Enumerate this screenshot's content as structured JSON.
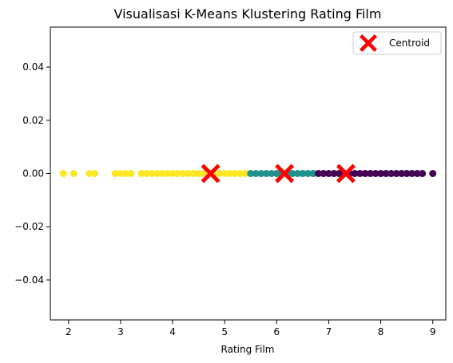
{
  "chart_data": {
    "type": "scatter",
    "title": "Visualisasi K-Means Klustering Rating Film",
    "xlabel": "Rating Film",
    "ylabel": "",
    "xlim": [
      1.65,
      9.25
    ],
    "ylim": [
      -0.055,
      0.055
    ],
    "x_ticks": [
      2,
      3,
      4,
      5,
      6,
      7,
      8,
      9
    ],
    "x_tick_labels": [
      "2",
      "3",
      "4",
      "5",
      "6",
      "7",
      "8",
      "9"
    ],
    "y_ticks": [
      -0.04,
      -0.02,
      0.0,
      0.02,
      0.04
    ],
    "y_tick_labels": [
      "−0.04",
      "−0.02",
      "0.00",
      "0.02",
      "0.04"
    ],
    "grid": false,
    "legend_position": "top-right",
    "series": [
      {
        "color": "#fde725",
        "x": [
          1.9,
          2.1,
          2.4,
          2.5,
          2.9,
          3.0,
          3.1,
          3.2,
          3.4,
          3.5,
          3.6,
          3.7,
          3.8,
          3.9,
          4.0,
          4.1,
          4.2,
          4.3,
          4.4,
          4.5,
          4.6,
          4.7,
          4.8,
          4.9,
          5.0,
          5.1,
          5.2,
          5.3,
          5.4
        ],
        "y": [
          0,
          0,
          0,
          0,
          0,
          0,
          0,
          0,
          0,
          0,
          0,
          0,
          0,
          0,
          0,
          0,
          0,
          0,
          0,
          0,
          0,
          0,
          0,
          0,
          0,
          0,
          0,
          0,
          0
        ]
      },
      {
        "color": "#21918c",
        "x": [
          5.5,
          5.6,
          5.7,
          5.8,
          5.9,
          6.0,
          6.1,
          6.2,
          6.3,
          6.4,
          6.5,
          6.6,
          6.7
        ],
        "y": [
          0,
          0,
          0,
          0,
          0,
          0,
          0,
          0,
          0,
          0,
          0,
          0,
          0
        ]
      },
      {
        "color": "#440154",
        "x": [
          6.8,
          6.9,
          7.0,
          7.1,
          7.2,
          7.3,
          7.4,
          7.5,
          7.6,
          7.7,
          7.8,
          7.9,
          8.0,
          8.1,
          8.2,
          8.3,
          8.4,
          8.5,
          8.6,
          8.7,
          8.8,
          9.0
        ],
        "y": [
          0,
          0,
          0,
          0,
          0,
          0,
          0,
          0,
          0,
          0,
          0,
          0,
          0,
          0,
          0,
          0,
          0,
          0,
          0,
          0,
          0,
          0
        ]
      },
      {
        "name": "Centroid",
        "marker": "X",
        "color": "#ff0000",
        "x": [
          4.73,
          6.15,
          7.33
        ],
        "y": [
          0,
          0,
          0
        ]
      }
    ]
  }
}
